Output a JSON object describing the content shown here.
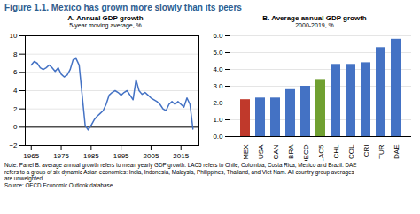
{
  "title": "Figure 1.1. Mexico has grown more slowly than its peers",
  "annotations": [
    "Note: Panel B: average annual growth refers to mean yearly GDP growth. LAC5 refers to Chile, Colombia, Costa Rica, Mexico and Brazil. DAE",
    "refers to a group of six dynamic Asian economies: India, Indonesia, Malaysia, Philippines, Thailand, and Viet Nam. All country group averages",
    "are unweighted.",
    "Source: OECD Economic Outlook database."
  ],
  "chart_data": [
    {
      "type": "line",
      "title": "A. Annual GDP growth",
      "subtitle": "5-year moving average, %",
      "x": [
        1965,
        1966,
        1967,
        1968,
        1969,
        1970,
        1971,
        1972,
        1973,
        1974,
        1975,
        1976,
        1977,
        1978,
        1979,
        1980,
        1981,
        1982,
        1983,
        1984,
        1985,
        1986,
        1987,
        1988,
        1989,
        1990,
        1991,
        1992,
        1993,
        1994,
        1995,
        1996,
        1997,
        1998,
        1999,
        2000,
        2001,
        2002,
        2003,
        2004,
        2005,
        2006,
        2007,
        2008,
        2009,
        2010,
        2011,
        2012,
        2013,
        2014,
        2015,
        2016,
        2017,
        2018,
        2019
      ],
      "values": [
        6.8,
        7.2,
        7.0,
        6.5,
        6.3,
        6.5,
        6.8,
        6.5,
        6.1,
        6.5,
        5.8,
        5.5,
        5.7,
        6.3,
        7.4,
        7.5,
        6.8,
        3.5,
        0.2,
        -0.3,
        0.2,
        0.8,
        1.2,
        1.5,
        1.8,
        2.5,
        3.5,
        3.8,
        4.0,
        3.8,
        3.5,
        3.8,
        4.0,
        3.5,
        3.0,
        5.2,
        4.0,
        3.6,
        3.8,
        3.5,
        3.2,
        3.0,
        2.8,
        2.5,
        2.0,
        1.8,
        2.5,
        2.8,
        2.5,
        2.8,
        2.5,
        2.2,
        3.2,
        2.5,
        -0.2
      ],
      "color": "#4472c4",
      "xlim": [
        1963,
        2021
      ],
      "xticks": [
        1965,
        1975,
        1985,
        1995,
        2005,
        2015
      ],
      "ylim": [
        -2,
        10
      ],
      "yticks": [
        -2,
        0,
        2,
        4,
        6,
        8,
        10
      ],
      "grid": true
    },
    {
      "type": "bar",
      "title": "B. Average annual GDP growth",
      "subtitle": "2000-2019, %",
      "categories": [
        "MEX",
        "USA",
        "CAN",
        "BRA",
        "OECD",
        "LAC5",
        "CHL",
        "COL",
        "CRI",
        "TUR",
        "DAE"
      ],
      "values": [
        2.2,
        2.3,
        2.3,
        2.8,
        3.0,
        3.4,
        4.3,
        4.3,
        4.4,
        5.3,
        5.8
      ],
      "colors": [
        "#c0392b",
        "#4472c4",
        "#4472c4",
        "#4472c4",
        "#4472c4",
        "#70a030",
        "#4472c4",
        "#4472c4",
        "#4472c4",
        "#4472c4",
        "#4472c4"
      ],
      "ylim": [
        0,
        6
      ],
      "yticks": [
        0,
        1,
        2,
        3,
        4,
        5,
        6
      ],
      "grid": true
    }
  ]
}
